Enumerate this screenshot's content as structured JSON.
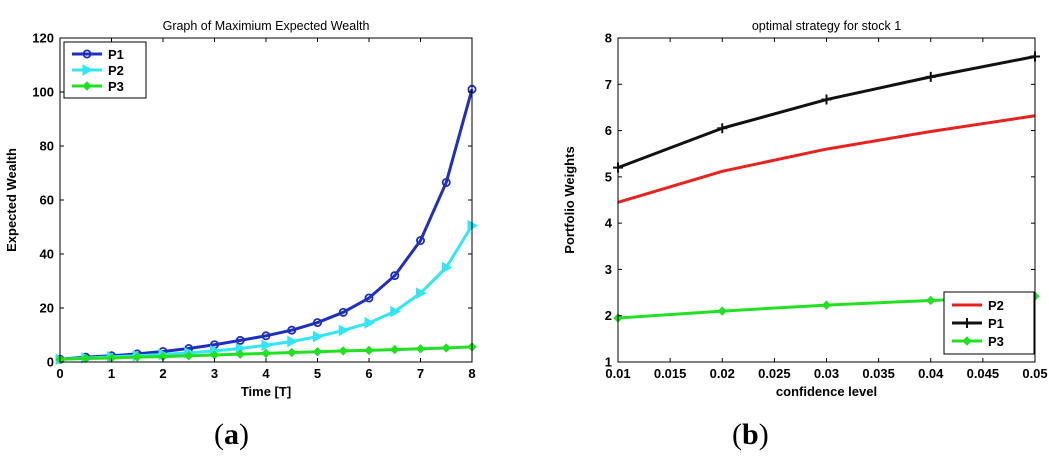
{
  "chart_data": [
    {
      "type": "line",
      "title": "Graph of Maximium Expected Wealth",
      "xlabel": "Time [T]",
      "ylabel": "Expected Wealth",
      "xlim": [
        0,
        8
      ],
      "ylim": [
        0,
        120
      ],
      "xticks": [
        0,
        1,
        2,
        3,
        4,
        5,
        6,
        7,
        8
      ],
      "yticks": [
        0,
        20,
        40,
        60,
        80,
        100,
        120
      ],
      "legend_position": "top-left",
      "grid": false,
      "x": [
        0,
        0.5,
        1,
        1.5,
        2,
        2.5,
        3,
        3.5,
        4,
        4.5,
        5,
        5.5,
        6,
        6.5,
        7,
        7.5,
        8
      ],
      "series": [
        {
          "name": "P1",
          "color": "#1f2fbf",
          "marker": "circle",
          "values": [
            1.0,
            1.8,
            2.3,
            3.0,
            3.9,
            5.0,
            6.4,
            8.0,
            9.7,
            11.8,
            14.6,
            18.4,
            23.7,
            32.0,
            45.0,
            66.5,
            101.0
          ]
        },
        {
          "name": "P2",
          "color": "#33e5f5",
          "marker": "triangle-right",
          "values": [
            1.0,
            1.5,
            1.9,
            2.3,
            2.8,
            3.4,
            4.1,
            5.0,
            6.2,
            7.6,
            9.4,
            11.7,
            14.5,
            18.7,
            25.5,
            35.0,
            50.5
          ]
        },
        {
          "name": "P3",
          "color": "#22e022",
          "marker": "diamond",
          "values": [
            1.0,
            1.3,
            1.5,
            1.8,
            2.0,
            2.3,
            2.6,
            2.9,
            3.2,
            3.5,
            3.8,
            4.1,
            4.3,
            4.6,
            4.9,
            5.2,
            5.6
          ]
        }
      ]
    },
    {
      "type": "line",
      "title": "optimal strategy for stock 1",
      "xlabel": "confidence level",
      "ylabel": "Portfolio Weights",
      "xlim": [
        0.01,
        0.05
      ],
      "ylim": [
        1,
        8
      ],
      "xticks": [
        0.01,
        0.015,
        0.02,
        0.025,
        0.03,
        0.035,
        0.04,
        0.045,
        0.05
      ],
      "xtick_labels": [
        "0.01",
        "0.015",
        "0.02",
        "0.025",
        "0.03",
        "0.035",
        "0.04",
        "0.045",
        "0.05"
      ],
      "yticks": [
        1,
        2,
        3,
        4,
        5,
        6,
        7,
        8
      ],
      "legend_position": "right",
      "grid": false,
      "x": [
        0.01,
        0.02,
        0.03,
        0.04,
        0.05
      ],
      "series": [
        {
          "name": "P2",
          "color": "#e8231f",
          "marker": "none",
          "values": [
            4.45,
            5.12,
            5.6,
            5.98,
            6.32
          ]
        },
        {
          "name": "P1",
          "color": "#111111",
          "marker": "plus",
          "values": [
            5.2,
            6.05,
            6.67,
            7.16,
            7.6
          ]
        },
        {
          "name": "P3",
          "color": "#22e022",
          "marker": "diamond",
          "values": [
            1.95,
            2.1,
            2.23,
            2.33,
            2.42
          ]
        }
      ]
    }
  ],
  "captions": {
    "a": "a",
    "b": "b"
  }
}
